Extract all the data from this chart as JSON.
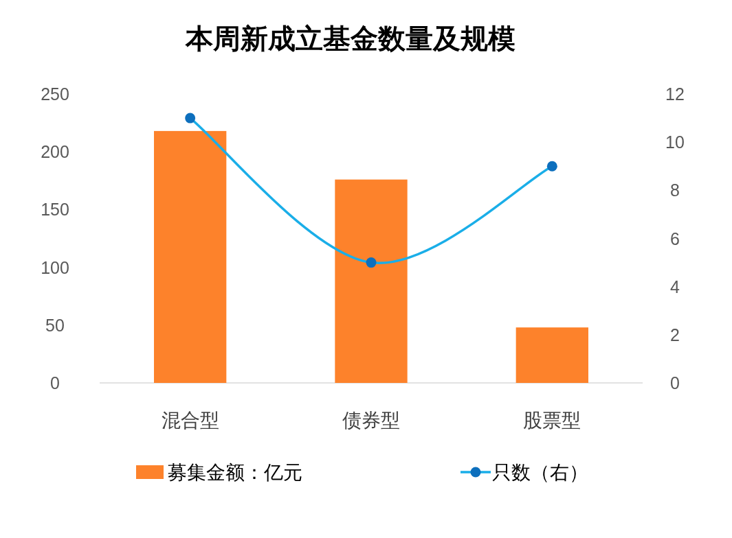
{
  "chart_data": {
    "type": "bar",
    "title": "本周新成立基金数量及规模",
    "categories": [
      "混合型",
      "债券型",
      "股票型"
    ],
    "series": [
      {
        "name": "募集金额：亿元",
        "color": "#fd822b",
        "values": [
          218,
          176,
          48
        ]
      },
      {
        "name": "只数（右）",
        "type": "line",
        "axis": "y2",
        "color": "#1aaee8",
        "colors": [
          "#0d6fbd",
          "#0d6fbd",
          "#0d6fbd"
        ],
        "values": [
          11,
          5,
          9
        ]
      }
    ],
    "ylim": [
      0,
      250
    ],
    "yticks": [
      0,
      50,
      100,
      150,
      200,
      250
    ],
    "y2lim": [
      0,
      12
    ],
    "y2ticks": [
      0,
      2,
      4,
      6,
      8,
      10,
      12
    ],
    "grid": false,
    "legend": "bottom",
    "marker": "circle"
  }
}
